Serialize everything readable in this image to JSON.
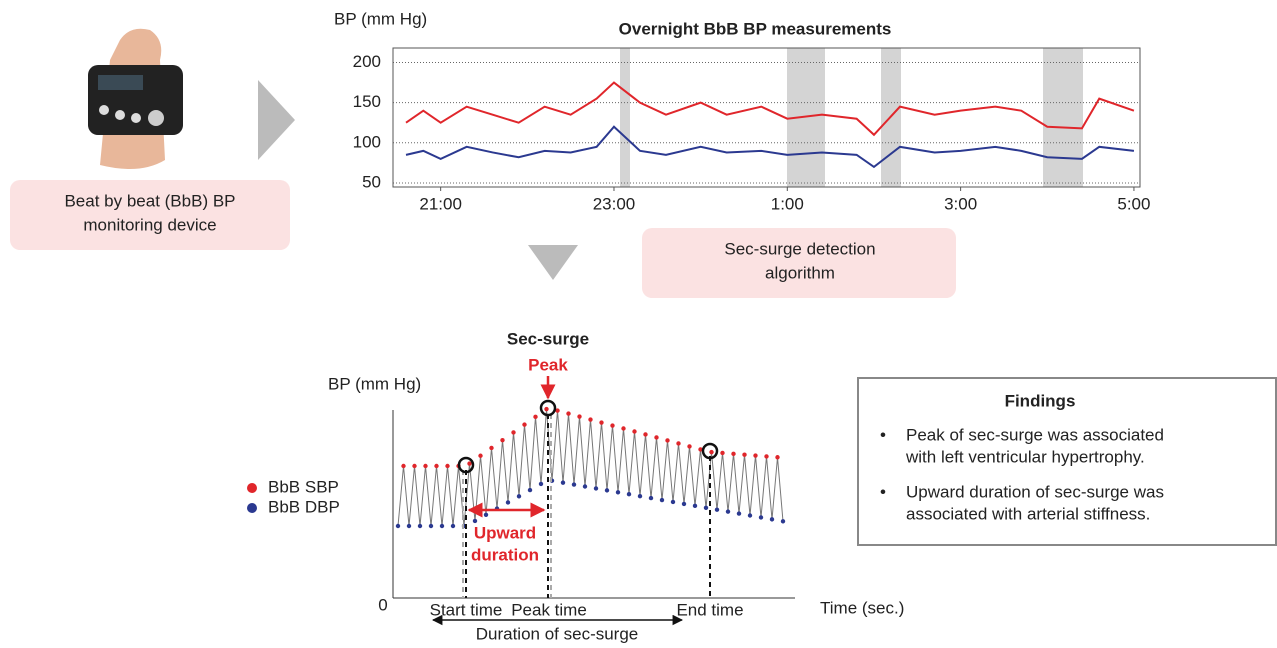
{
  "header": {
    "device_label": [
      "Beat by beat (BbB) BP",
      "monitoring device"
    ],
    "algorithm_label": [
      "Sec-surge detection",
      "algorithm"
    ]
  },
  "overnight_chart": {
    "type": "line",
    "title": "Overnight BbB BP measurements",
    "y_label": "BP (mm Hg)",
    "x": [
      20.6,
      20.8,
      21.0,
      21.3,
      21.6,
      21.9,
      22.2,
      22.5,
      22.8,
      23.0,
      23.3,
      23.6,
      24.0,
      24.3,
      24.7,
      25.0,
      25.4,
      25.8,
      26.0,
      26.3,
      26.7,
      27.0,
      27.4,
      27.7,
      28.0,
      28.4,
      28.6,
      29.0
    ],
    "series": [
      {
        "color": "#e0262b",
        "values": [
          125,
          140,
          125,
          145,
          135,
          125,
          145,
          135,
          155,
          175,
          150,
          135,
          150,
          135,
          145,
          130,
          135,
          130,
          110,
          145,
          135,
          140,
          145,
          140,
          120,
          118,
          155,
          140
        ]
      },
      {
        "color": "#2b3990",
        "values": [
          85,
          90,
          80,
          95,
          88,
          82,
          90,
          88,
          95,
          120,
          90,
          85,
          95,
          88,
          90,
          85,
          88,
          85,
          70,
          95,
          88,
          90,
          95,
          90,
          82,
          80,
          95,
          90
        ]
      }
    ],
    "xlim": [
      20.45,
      29.07
    ],
    "ylim": [
      45,
      218
    ],
    "xticks": [
      {
        "value": 21,
        "label": "21:00"
      },
      {
        "value": 23,
        "label": "23:00"
      },
      {
        "value": 25,
        "label": "1:00"
      },
      {
        "value": 27,
        "label": "3:00"
      },
      {
        "value": 29,
        "label": "5:00"
      }
    ],
    "yticks": [
      50,
      100,
      150,
      200
    ],
    "grid": true
  },
  "surge": {
    "title": "Sec-surge",
    "peak": "Peak",
    "y_label": "BP (mm Hg)",
    "origin": "0",
    "legend": [
      "BbB SBP",
      "BbB DBP"
    ],
    "upward": [
      "Upward",
      "duration"
    ],
    "start": "Start time",
    "peak_time": "Peak time",
    "end": "End time",
    "x_label": "Time (sec.)",
    "duration": "Duration of sec-surge"
  },
  "findings": {
    "title": "Findings",
    "items": [
      [
        "Peak of sec-surge was associated",
        "with left ventricular hypertrophy."
      ],
      [
        "Upward duration of sec-surge was",
        "associated with arterial stiffness."
      ]
    ]
  }
}
